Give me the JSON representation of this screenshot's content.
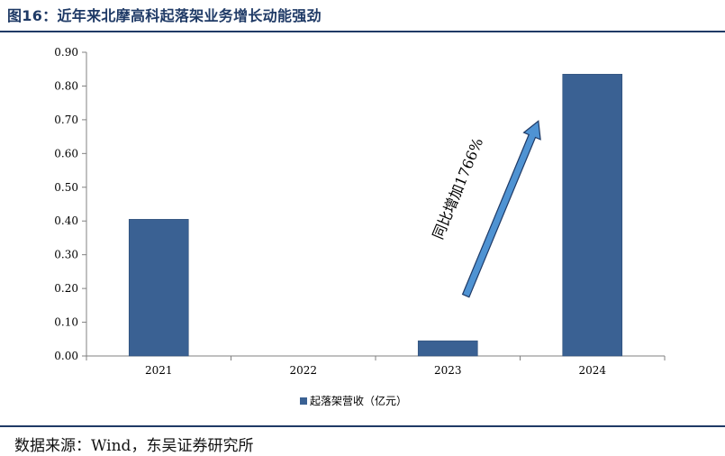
{
  "figure_title": "图16：近年来北摩高科起落架业务增长动能强劲",
  "source_note": "数据来源：Wind，东吴证券研究所",
  "colors": {
    "bar": "#3a6193",
    "arrow": "#4f93d3",
    "title": "#1f3a66"
  },
  "chart_data": {
    "type": "bar",
    "title": "",
    "xlabel": "",
    "ylabel": "",
    "categories": [
      "2021",
      "2022",
      "2023",
      "2024"
    ],
    "series": [
      {
        "name": "起落架营收（亿元）",
        "values": [
          0.405,
          0.0,
          0.045,
          0.835
        ]
      }
    ],
    "ylim": [
      0,
      0.9
    ],
    "yticks": [
      "0.00",
      "0.10",
      "0.20",
      "0.30",
      "0.40",
      "0.50",
      "0.60",
      "0.70",
      "0.80",
      "0.90"
    ],
    "grid": false,
    "legend_position": "bottom-center",
    "annotation": {
      "text": "同比增加1766%",
      "from": "2023",
      "to": "2024"
    }
  }
}
